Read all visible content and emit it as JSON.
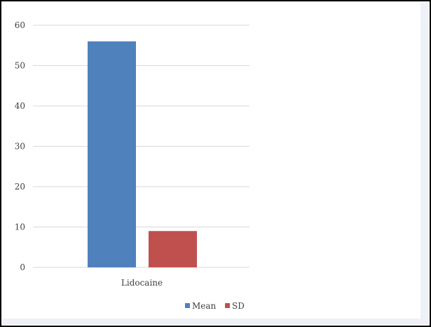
{
  "chart_data": {
    "type": "bar",
    "categories": [
      "Lidocaine"
    ],
    "series": [
      {
        "name": "Mean",
        "values": [
          56
        ],
        "color": "#4f81bd"
      },
      {
        "name": "SD",
        "values": [
          9
        ],
        "color": "#c0504d"
      }
    ],
    "ylim": [
      0,
      60
    ],
    "yticks": [
      0,
      10,
      20,
      30,
      40,
      50,
      60
    ],
    "grid": true,
    "legend_position": "bottom-right",
    "gridline_color": "#d9d9d9",
    "text_color": "#404040"
  }
}
